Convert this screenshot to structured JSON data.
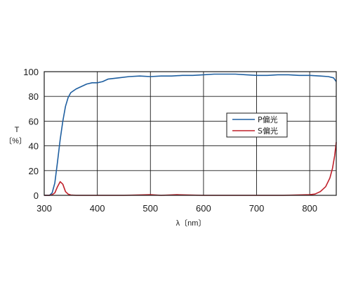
{
  "chart_data": {
    "type": "line",
    "title": "",
    "xlabel": "λ〔nm〕",
    "ylabel_lines": [
      "T",
      "〔%〕"
    ],
    "xlim": [
      300,
      850
    ],
    "ylim": [
      0,
      100
    ],
    "x_ticks": [
      300,
      400,
      500,
      600,
      700,
      800
    ],
    "y_ticks": [
      0,
      20,
      40,
      60,
      80,
      100
    ],
    "grid": true,
    "legend_position": "right, inside plot",
    "series": [
      {
        "name": "P偏光",
        "color": "#1f5fa0",
        "points": [
          [
            300,
            0
          ],
          [
            310,
            0
          ],
          [
            315,
            2
          ],
          [
            320,
            10
          ],
          [
            325,
            27
          ],
          [
            330,
            45
          ],
          [
            335,
            60
          ],
          [
            340,
            72
          ],
          [
            345,
            79
          ],
          [
            350,
            83
          ],
          [
            360,
            86
          ],
          [
            370,
            88
          ],
          [
            380,
            90
          ],
          [
            390,
            91
          ],
          [
            400,
            91
          ],
          [
            410,
            92
          ],
          [
            420,
            94
          ],
          [
            440,
            95
          ],
          [
            460,
            96
          ],
          [
            480,
            96.5
          ],
          [
            500,
            96
          ],
          [
            520,
            96.5
          ],
          [
            540,
            96.5
          ],
          [
            560,
            97
          ],
          [
            580,
            97
          ],
          [
            600,
            97.5
          ],
          [
            620,
            98
          ],
          [
            640,
            98
          ],
          [
            660,
            98
          ],
          [
            680,
            97.5
          ],
          [
            700,
            97
          ],
          [
            720,
            97
          ],
          [
            740,
            97.5
          ],
          [
            760,
            97.5
          ],
          [
            780,
            97
          ],
          [
            800,
            97
          ],
          [
            820,
            96.5
          ],
          [
            835,
            96
          ],
          [
            845,
            95
          ],
          [
            850,
            92
          ]
        ]
      },
      {
        "name": "S偏光",
        "color": "#c0202a",
        "points": [
          [
            300,
            0
          ],
          [
            310,
            0
          ],
          [
            315,
            0.5
          ],
          [
            320,
            2
          ],
          [
            325,
            7
          ],
          [
            330,
            11
          ],
          [
            335,
            9
          ],
          [
            340,
            3
          ],
          [
            345,
            1
          ],
          [
            350,
            0.3
          ],
          [
            360,
            0
          ],
          [
            380,
            0
          ],
          [
            400,
            0
          ],
          [
            450,
            0
          ],
          [
            500,
            0.5
          ],
          [
            520,
            0
          ],
          [
            550,
            0.5
          ],
          [
            600,
            0
          ],
          [
            650,
            0
          ],
          [
            700,
            0
          ],
          [
            750,
            0
          ],
          [
            800,
            0.5
          ],
          [
            810,
            1
          ],
          [
            820,
            3
          ],
          [
            830,
            7
          ],
          [
            838,
            14
          ],
          [
            843,
            22
          ],
          [
            847,
            32
          ],
          [
            850,
            43
          ]
        ]
      }
    ]
  }
}
